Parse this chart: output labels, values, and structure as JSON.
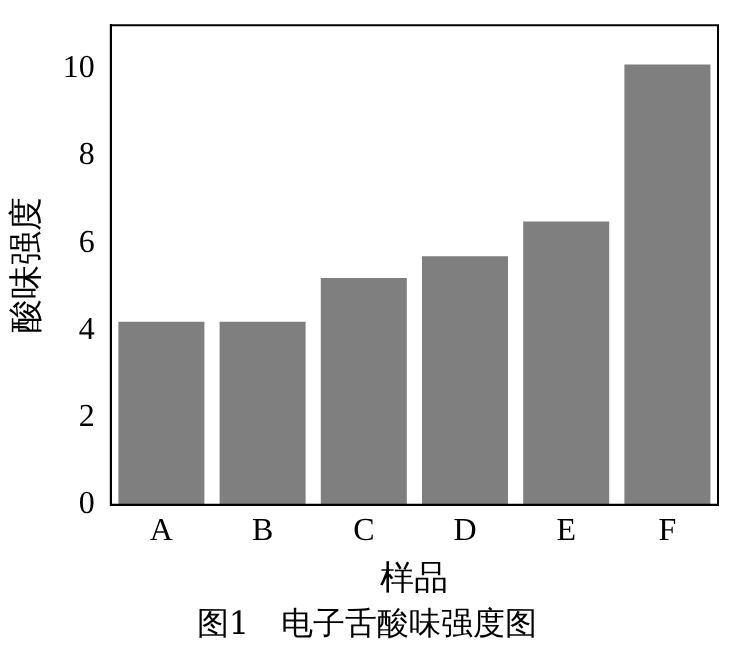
{
  "chart_data": {
    "type": "bar",
    "categories": [
      "A",
      "B",
      "C",
      "D",
      "E",
      "F"
    ],
    "values": [
      4.2,
      4.2,
      5.2,
      5.7,
      6.5,
      10.1
    ],
    "color": "#7f7f7f",
    "xlabel": "样品",
    "ylabel": "酸味强度",
    "ylim": [
      0,
      11
    ],
    "yticks": [
      0,
      2,
      4,
      6,
      8,
      10
    ],
    "grid": false,
    "legend": false,
    "annotations": [
      "图1　电子舌酸味强度图"
    ]
  }
}
